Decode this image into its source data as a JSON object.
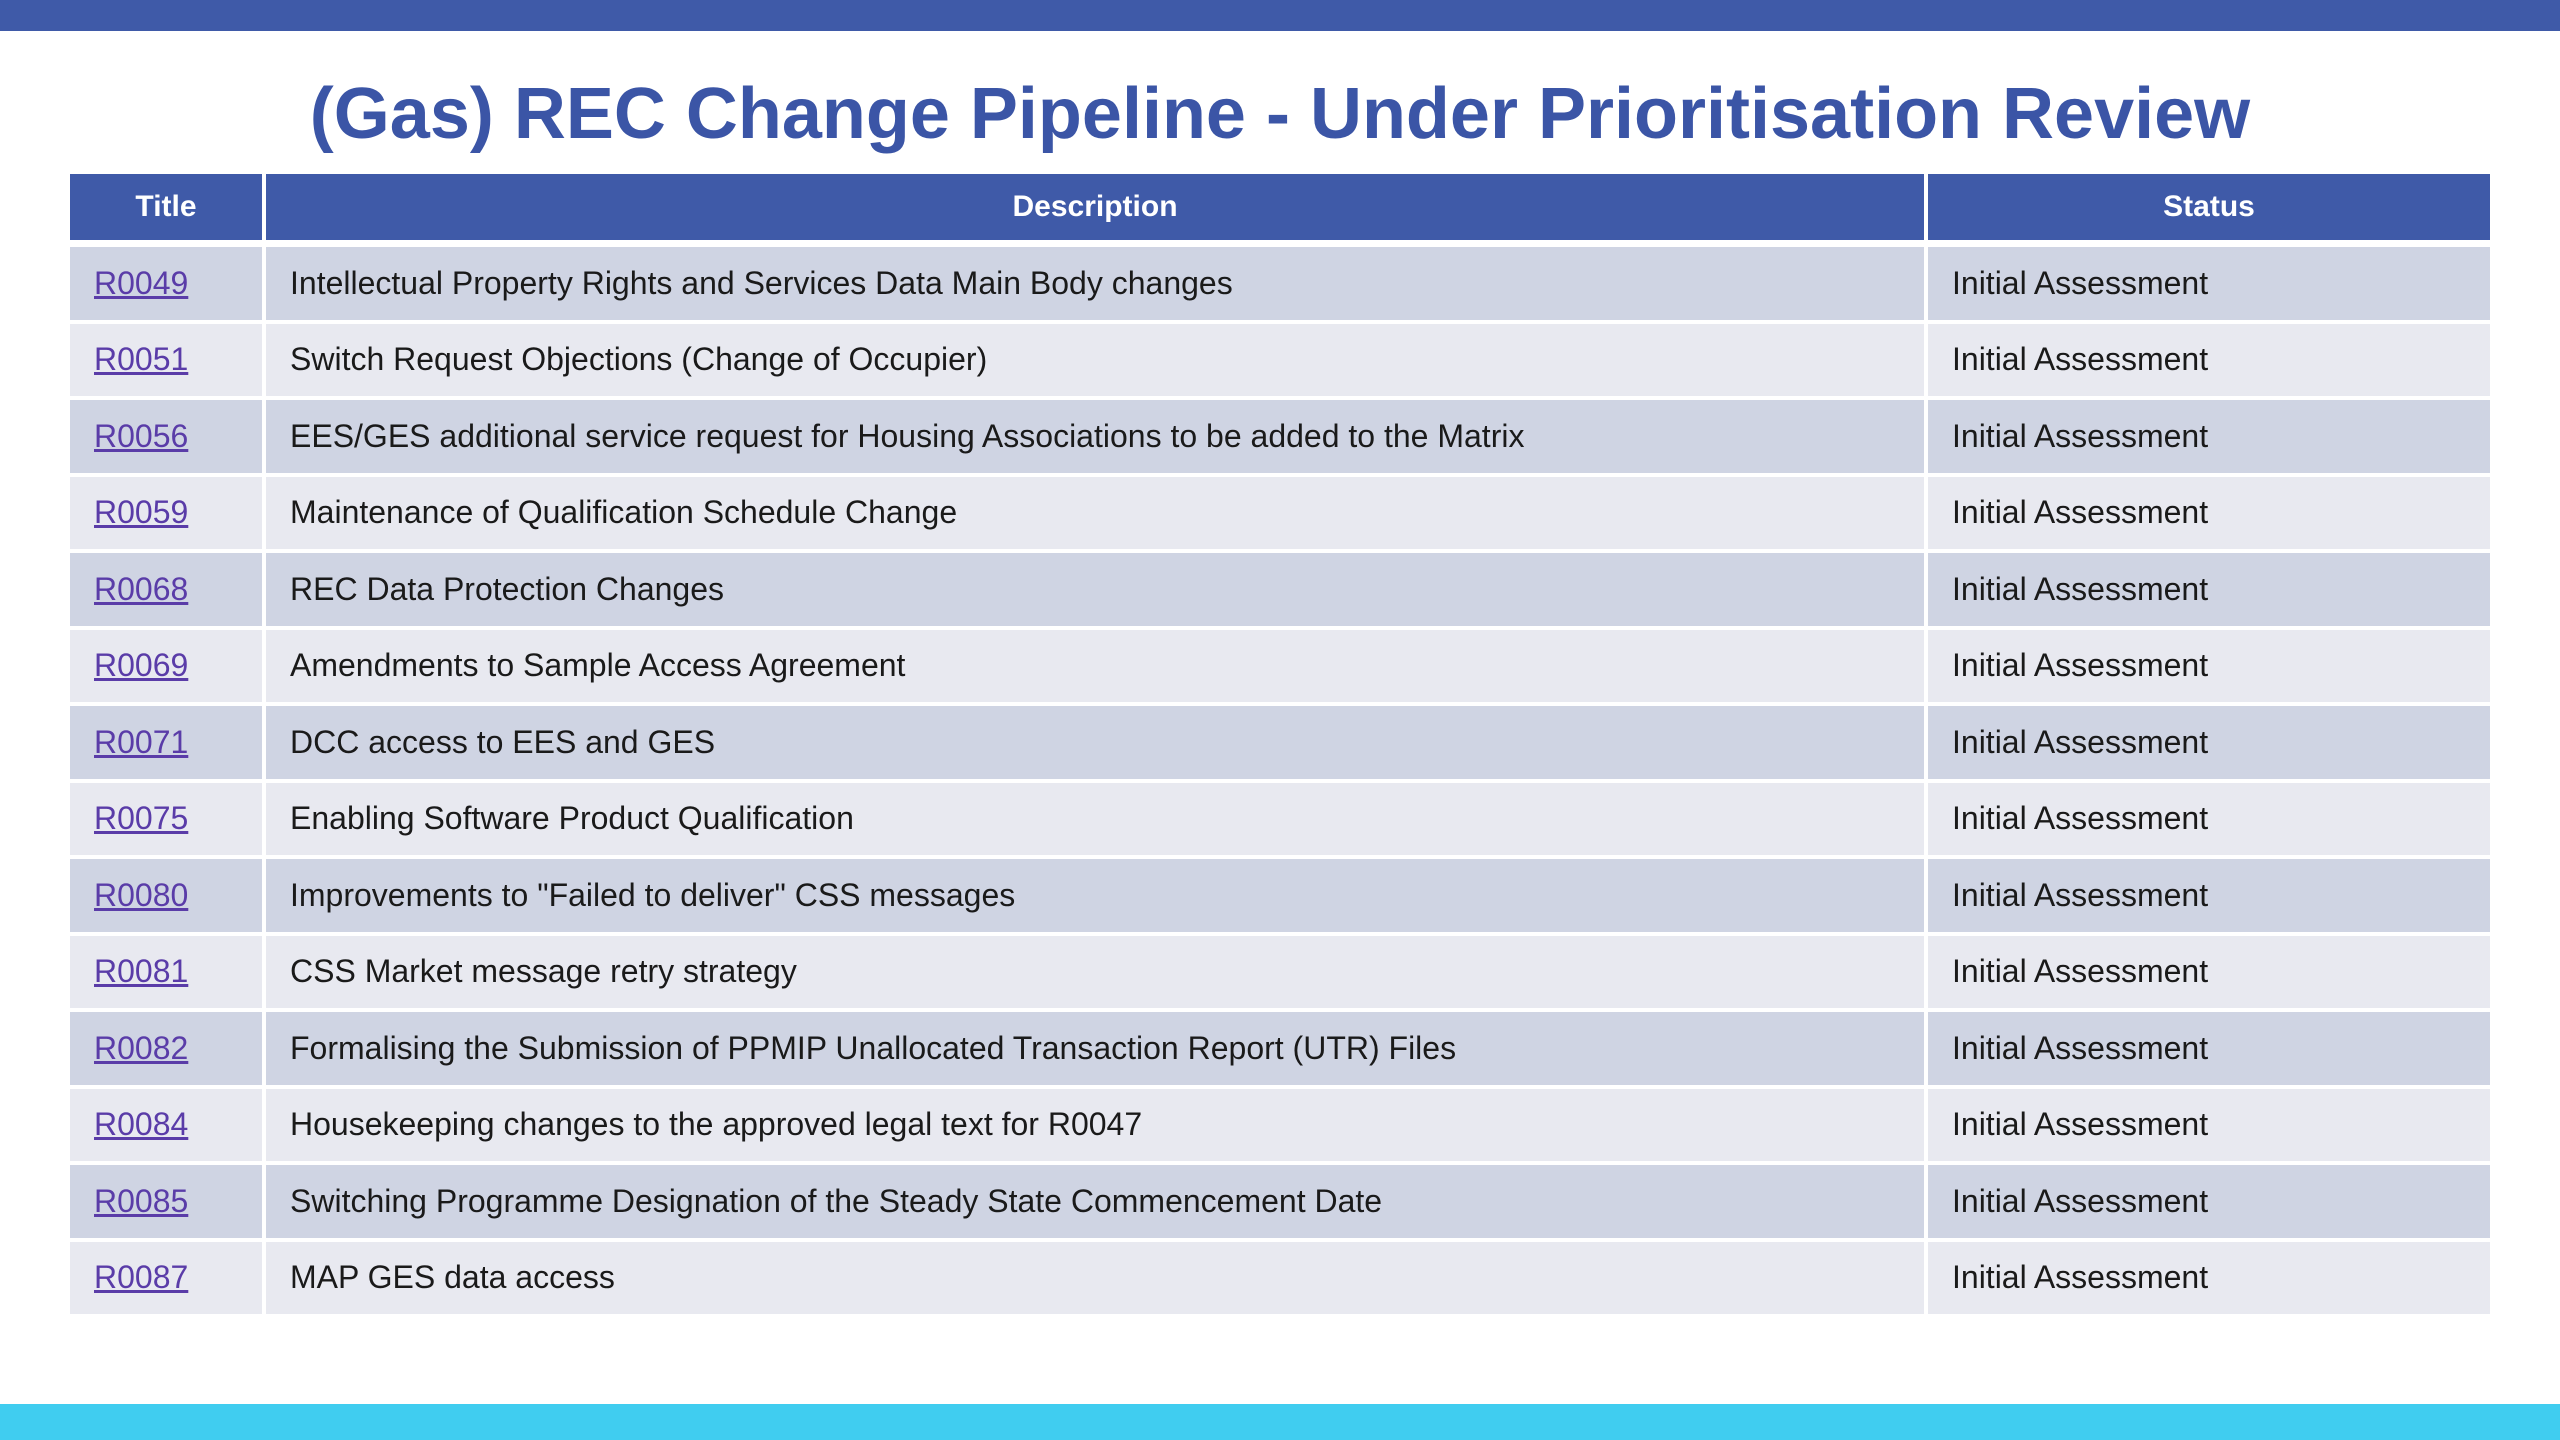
{
  "page": {
    "title": "(Gas) REC Change Pipeline - Under Prioritisation Review"
  },
  "colors": {
    "header_blue": "#3f5aa8",
    "title_blue": "#3b55a6",
    "row_dark": "#cfd4e3",
    "row_light": "#e8e9f0",
    "link_purple": "#5a3ca8",
    "bottom_bar": "#40cdf0"
  },
  "table": {
    "headers": [
      "Title",
      "Description",
      "Status"
    ],
    "rows": [
      {
        "id": "R0049",
        "description": "Intellectual Property Rights and Services Data Main Body changes",
        "status": "Initial Assessment"
      },
      {
        "id": "R0051",
        "description": "Switch Request Objections (Change of Occupier)",
        "status": "Initial Assessment"
      },
      {
        "id": "R0056",
        "description": "EES/GES additional service request for Housing Associations to be added to the Matrix",
        "status": "Initial Assessment"
      },
      {
        "id": "R0059",
        "description": "Maintenance of Qualification Schedule Change",
        "status": "Initial Assessment"
      },
      {
        "id": "R0068",
        "description": "REC Data Protection Changes",
        "status": "Initial Assessment"
      },
      {
        "id": "R0069",
        "description": "Amendments to Sample Access Agreement",
        "status": "Initial Assessment"
      },
      {
        "id": "R0071",
        "description": "DCC access to EES and GES",
        "status": "Initial Assessment"
      },
      {
        "id": "R0075",
        "description": "Enabling Software Product Qualification",
        "status": "Initial Assessment"
      },
      {
        "id": "R0080",
        "description": "Improvements to \"Failed to deliver\" CSS messages",
        "status": "Initial Assessment"
      },
      {
        "id": "R0081",
        "description": "CSS Market message retry strategy",
        "status": "Initial Assessment"
      },
      {
        "id": "R0082",
        "description": "Formalising the Submission of PPMIP Unallocated Transaction Report (UTR) Files",
        "status": "Initial Assessment"
      },
      {
        "id": "R0084",
        "description": "Housekeeping changes to the approved legal text for R0047",
        "status": "Initial Assessment"
      },
      {
        "id": "R0085",
        "description": "Switching Programme Designation of the Steady State Commencement Date",
        "status": "Initial Assessment"
      },
      {
        "id": "R0087",
        "description": "MAP GES data access",
        "status": "Initial Assessment"
      }
    ]
  }
}
